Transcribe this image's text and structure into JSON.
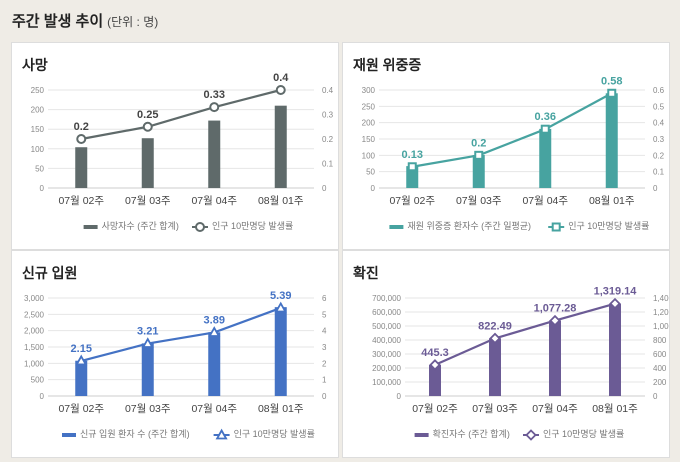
{
  "header": {
    "title": "주간 발생 추이",
    "unit": "(단위 : 명)"
  },
  "chart_data": [
    {
      "type": "bar+line",
      "title": "사망",
      "color": "#5f6a6a",
      "marker": "circle",
      "categories": [
        "07월 02주",
        "07월 03주",
        "07월 04주",
        "08월 01주"
      ],
      "bar_series": {
        "name": "사망자수 (주간 합계)",
        "values": [
          104,
          127,
          172,
          210
        ]
      },
      "line_series": {
        "name": "인구 10만명당 발생률",
        "values": [
          0.2,
          0.25,
          0.33,
          0.4
        ],
        "labels": [
          "0.2",
          "0.25",
          "0.33",
          "0.4"
        ]
      },
      "left_ylim": [
        0,
        250
      ],
      "left_ticks": [
        "0",
        "50",
        "100",
        "150",
        "200",
        "250"
      ],
      "right_ylim": [
        0,
        0.4
      ],
      "right_ticks": [
        "0",
        "0.1",
        "0.2",
        "0.3",
        "0.4"
      ],
      "grid": true
    },
    {
      "type": "bar+line",
      "title": "재원 위중증",
      "color": "#47a3a0",
      "marker": "square",
      "categories": [
        "07월 02주",
        "07월 03주",
        "07월 04주",
        "08월 01주"
      ],
      "bar_series": {
        "name": "재원 위중증 환자수 (주간 일평균)",
        "values": [
          67,
          101,
          181,
          290
        ]
      },
      "line_series": {
        "name": "인구 10만명당 발생률",
        "values": [
          0.13,
          0.2,
          0.36,
          0.58
        ],
        "labels": [
          "0.13",
          "0.2",
          "0.36",
          "0.58"
        ]
      },
      "left_ylim": [
        0,
        300
      ],
      "left_ticks": [
        "0",
        "50",
        "100",
        "150",
        "200",
        "250",
        "300"
      ],
      "right_ylim": [
        0,
        0.6
      ],
      "right_ticks": [
        "0",
        "0.1",
        "0.2",
        "0.3",
        "0.4",
        "0.5",
        "0.6"
      ],
      "grid": true
    },
    {
      "type": "bar+line",
      "title": "신규 입원",
      "color": "#4472c4",
      "marker": "triangle",
      "categories": [
        "07월 02주",
        "07월 03주",
        "07월 04주",
        "08월 01주"
      ],
      "bar_series": {
        "name": "신규 입원 환자 수 (주간 합계)",
        "values": [
          1080,
          1610,
          1950,
          2720
        ]
      },
      "line_series": {
        "name": "인구 10만명당 발생률",
        "values": [
          2.15,
          3.21,
          3.89,
          5.39
        ],
        "labels": [
          "2.15",
          "3.21",
          "3.89",
          "5.39"
        ]
      },
      "left_ylim": [
        0,
        3000
      ],
      "left_ticks": [
        "0",
        "500",
        "1,000",
        "1,500",
        "2,000",
        "2,500",
        "3,000"
      ],
      "right_ylim": [
        0,
        6
      ],
      "right_ticks": [
        "0",
        "1",
        "2",
        "3",
        "4",
        "5",
        "6"
      ],
      "grid": true
    },
    {
      "type": "bar+line",
      "title": "확진",
      "color": "#6b5b95",
      "marker": "diamond",
      "categories": [
        "07월 02주",
        "07월 03주",
        "07월 04주",
        "08월 01주"
      ],
      "bar_series": {
        "name": "확진자수 (주간 합계)",
        "values": [
          222000,
          411000,
          539000,
          659000
        ]
      },
      "line_series": {
        "name": "인구 10만명당 발생률",
        "values": [
          445.3,
          822.49,
          1077.28,
          1319.14
        ],
        "labels": [
          "445.3",
          "822.49",
          "1,077.28",
          "1,319.14"
        ]
      },
      "left_ylim": [
        0,
        700000
      ],
      "left_ticks": [
        "0",
        "100,000",
        "200,000",
        "300,000",
        "400,000",
        "500,000",
        "600,000",
        "700,000"
      ],
      "right_ylim": [
        0,
        1400
      ],
      "right_ticks": [
        "0",
        "200",
        "400",
        "600",
        "800",
        "1,000",
        "1,200",
        "1,400"
      ],
      "grid": true
    }
  ]
}
